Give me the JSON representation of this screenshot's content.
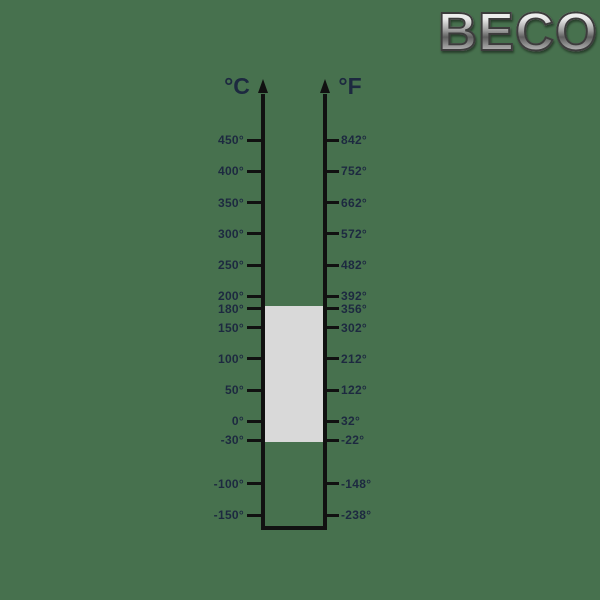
{
  "logo": {
    "text": "BECO"
  },
  "scale": {
    "left_header": "°C",
    "right_header": "°F",
    "rows": [
      {
        "c": "450°",
        "f": "842°"
      },
      {
        "c": "400°",
        "f": "752°"
      },
      {
        "c": "350°",
        "f": "662°"
      },
      {
        "c": "300°",
        "f": "572°"
      },
      {
        "c": "250°",
        "f": "482°"
      },
      {
        "c": "200°",
        "f": "392°"
      },
      {
        "c": "180°",
        "f": "356°"
      },
      {
        "c": "150°",
        "f": "302°"
      },
      {
        "c": "100°",
        "f": "212°"
      },
      {
        "c": "50°",
        "f": "122°"
      },
      {
        "c": "0°",
        "f": "32°"
      },
      {
        "c": "-30°",
        "f": "-22°"
      },
      {
        "c": "-100°",
        "f": "-148°"
      },
      {
        "c": "-150°",
        "f": "-238°"
      }
    ],
    "highlight_range": {
      "from_c": "-30°",
      "to_c": "180°"
    }
  },
  "colors": {
    "background": "#47714e",
    "line": "#111111",
    "label": "#1d2940",
    "band": "#d9d9d9"
  },
  "chart_data": {
    "type": "table",
    "columns": [
      "°C",
      "°F"
    ],
    "rows": [
      [
        450,
        842
      ],
      [
        400,
        752
      ],
      [
        350,
        662
      ],
      [
        300,
        572
      ],
      [
        250,
        482
      ],
      [
        200,
        392
      ],
      [
        180,
        356
      ],
      [
        150,
        302
      ],
      [
        100,
        212
      ],
      [
        50,
        122
      ],
      [
        0,
        32
      ],
      [
        -30,
        -22
      ],
      [
        -100,
        -148
      ],
      [
        -150,
        -238
      ]
    ],
    "highlight_band_celsius": [
      -30,
      180
    ]
  }
}
